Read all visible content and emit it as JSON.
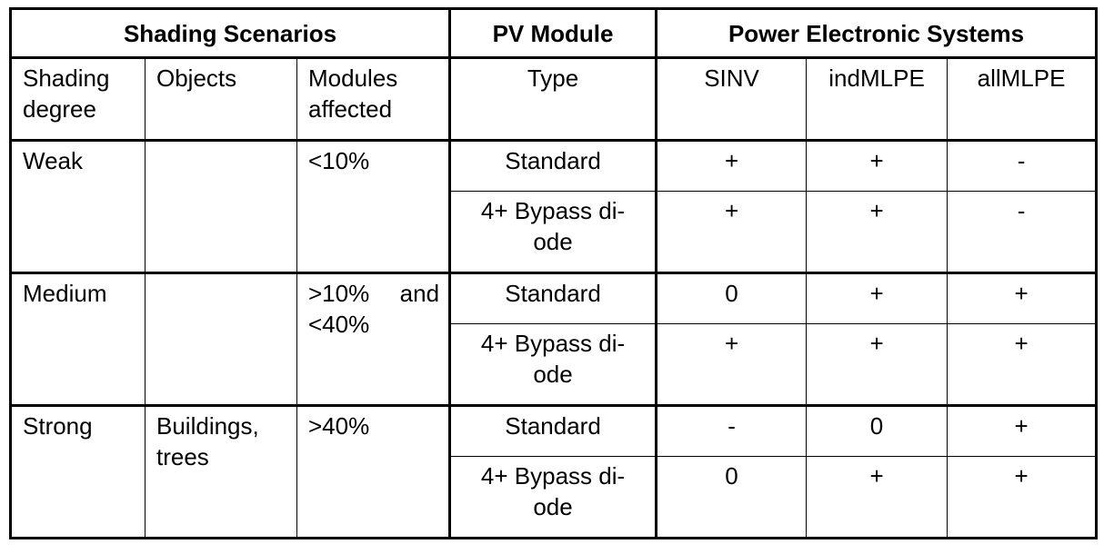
{
  "groups": {
    "shading_scenarios": "Shading Scenarios",
    "pv_module": "PV Module",
    "power_electronic_systems": "Power Electronic Systems"
  },
  "subheaders": {
    "shading_degree": "Shading degree",
    "objects": "Objects",
    "modules_affected": "Modules affected",
    "type": "Type",
    "sinv": "SINV",
    "indmlpe": "indMLPE",
    "allmlpe": "allMLPE"
  },
  "rows": [
    {
      "degree": "Weak",
      "objects": "",
      "affected": "<10%",
      "variants": [
        {
          "type": "Standard",
          "sinv": "+",
          "indmlpe": "+",
          "allmlpe": "-"
        },
        {
          "type": "4+ Bypass di-\node",
          "sinv": "+",
          "indmlpe": "+",
          "allmlpe": "-"
        }
      ]
    },
    {
      "degree": "Medium",
      "objects": "",
      "affected": ">10% and <40%",
      "variants": [
        {
          "type": "Standard",
          "sinv": "0",
          "indmlpe": "+",
          "allmlpe": "+"
        },
        {
          "type": "4+ Bypass di-\node",
          "sinv": "+",
          "indmlpe": "+",
          "allmlpe": "+"
        }
      ]
    },
    {
      "degree": "Strong",
      "objects": "Buildings, trees",
      "affected": ">40%",
      "variants": [
        {
          "type": "Standard",
          "sinv": "-",
          "indmlpe": "0",
          "allmlpe": "+"
        },
        {
          "type": "4+ Bypass di-\node",
          "sinv": "0",
          "indmlpe": "+",
          "allmlpe": "+"
        }
      ]
    }
  ]
}
